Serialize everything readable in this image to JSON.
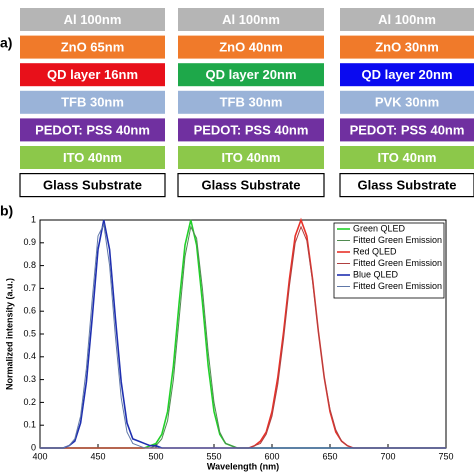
{
  "diagram": {
    "panel_label": "a)",
    "stacks": [
      {
        "layers": [
          {
            "label": "Al 100nm",
            "color": "#b5b5b5"
          },
          {
            "label": "ZnO 65nm",
            "color": "#f07a2a"
          },
          {
            "label": "QD layer 16nm",
            "color": "#e8101a"
          },
          {
            "label": "TFB 30nm",
            "color": "#9ab3d8"
          },
          {
            "label": "PEDOT: PSS 40nm",
            "color": "#7030a0"
          },
          {
            "label": "ITO 40nm",
            "color": "#8cc84a"
          },
          {
            "label": "Glass Substrate",
            "color": "#ffffff"
          }
        ]
      },
      {
        "layers": [
          {
            "label": "Al 100nm",
            "color": "#b5b5b5"
          },
          {
            "label": "ZnO 40nm",
            "color": "#f07a2a"
          },
          {
            "label": "QD layer 20nm",
            "color": "#1ea84a"
          },
          {
            "label": "TFB 30nm",
            "color": "#9ab3d8"
          },
          {
            "label": "PEDOT: PSS 40nm",
            "color": "#7030a0"
          },
          {
            "label": "ITO 40nm",
            "color": "#8cc84a"
          },
          {
            "label": "Glass Substrate",
            "color": "#ffffff"
          }
        ]
      },
      {
        "layers": [
          {
            "label": "Al 100nm",
            "color": "#b5b5b5"
          },
          {
            "label": "ZnO 30nm",
            "color": "#f07a2a"
          },
          {
            "label": "QD layer 20nm",
            "color": "#0a0af0"
          },
          {
            "label": "PVK 30nm",
            "color": "#9ab3d8"
          },
          {
            "label": "PEDOT: PSS 40nm",
            "color": "#7030a0"
          },
          {
            "label": "ITO 40nm",
            "color": "#8cc84a"
          },
          {
            "label": "Glass Substrate",
            "color": "#ffffff"
          }
        ]
      }
    ]
  },
  "chart_data": {
    "type": "line",
    "panel_label": "b)",
    "x_label": "Wavelength (nm)",
    "y_label": "Normalized intensity (a.u.)",
    "xlim": [
      400,
      750
    ],
    "xticks": [
      400,
      450,
      500,
      550,
      600,
      650,
      700,
      750
    ],
    "ylim": [
      0,
      1
    ],
    "yticks": [
      0,
      0.1,
      0.2,
      0.3,
      0.4,
      0.5,
      0.6,
      0.7,
      0.8,
      0.9,
      1
    ],
    "legend": "upper right",
    "x": [
      400,
      405,
      410,
      415,
      420,
      425,
      430,
      435,
      440,
      445,
      450,
      455,
      460,
      465,
      470,
      475,
      480,
      485,
      490,
      495,
      500,
      505,
      510,
      515,
      520,
      525,
      530,
      535,
      540,
      545,
      550,
      555,
      560,
      565,
      570,
      575,
      580,
      585,
      590,
      595,
      600,
      605,
      610,
      615,
      620,
      625,
      630,
      635,
      640,
      645,
      650,
      655,
      660,
      665,
      670,
      675,
      680,
      685,
      690,
      695,
      700,
      705,
      710,
      715,
      720,
      725,
      730,
      735,
      740,
      745,
      750
    ],
    "series": [
      {
        "name": "Green QLED",
        "color": "#22d02a",
        "values": [
          0,
          0,
          0,
          0,
          0,
          0,
          0,
          0,
          0,
          0,
          0,
          0,
          0,
          0,
          0,
          0,
          0,
          0,
          0,
          0.01,
          0.02,
          0.06,
          0.16,
          0.36,
          0.64,
          0.89,
          1,
          0.89,
          0.64,
          0.36,
          0.16,
          0.06,
          0.02,
          0.01,
          0,
          0,
          0,
          0,
          0,
          0,
          0,
          0,
          0,
          0,
          0,
          0,
          0,
          0,
          0,
          0,
          0,
          0,
          0,
          0,
          0,
          0,
          0,
          0,
          0,
          0,
          0,
          0,
          0,
          0,
          0,
          0,
          0,
          0,
          0,
          0,
          0
        ]
      },
      {
        "name": "Fitted Green Emission",
        "color": "#4f8a4f",
        "values": [
          0,
          0,
          0,
          0,
          0,
          0,
          0,
          0,
          0,
          0,
          0,
          0,
          0,
          0,
          0,
          0,
          0,
          0,
          0,
          0,
          0.01,
          0.04,
          0.12,
          0.3,
          0.57,
          0.84,
          0.97,
          0.92,
          0.7,
          0.42,
          0.2,
          0.07,
          0.02,
          0.01,
          0,
          0,
          0,
          0,
          0,
          0,
          0,
          0,
          0,
          0,
          0,
          0,
          0,
          0,
          0,
          0,
          0,
          0,
          0,
          0,
          0,
          0,
          0,
          0,
          0,
          0,
          0,
          0,
          0,
          0,
          0,
          0,
          0,
          0,
          0,
          0,
          0
        ]
      },
      {
        "name": "Red QLED",
        "color": "#e8322a",
        "values": [
          0,
          0,
          0,
          0,
          0,
          0,
          0,
          0,
          0,
          0,
          0,
          0,
          0,
          0,
          0,
          0,
          0,
          0,
          0,
          0,
          0,
          0,
          0,
          0,
          0,
          0,
          0,
          0,
          0,
          0,
          0,
          0,
          0,
          0,
          0,
          0,
          0,
          0.01,
          0.03,
          0.07,
          0.16,
          0.31,
          0.51,
          0.74,
          0.93,
          1,
          0.93,
          0.74,
          0.51,
          0.31,
          0.16,
          0.07,
          0.03,
          0.01,
          0,
          0,
          0,
          0,
          0,
          0,
          0,
          0,
          0,
          0,
          0,
          0,
          0,
          0,
          0,
          0,
          0
        ]
      },
      {
        "name": "Fitted Green Emission",
        "color": "#b04040",
        "values": [
          0,
          0,
          0,
          0,
          0,
          0,
          0,
          0,
          0,
          0,
          0,
          0,
          0,
          0,
          0,
          0,
          0,
          0,
          0,
          0,
          0,
          0,
          0,
          0,
          0,
          0,
          0,
          0,
          0,
          0,
          0,
          0,
          0,
          0,
          0,
          0,
          0,
          0.01,
          0.02,
          0.06,
          0.14,
          0.28,
          0.48,
          0.71,
          0.9,
          0.97,
          0.91,
          0.73,
          0.51,
          0.31,
          0.17,
          0.08,
          0.03,
          0.01,
          0,
          0,
          0,
          0,
          0,
          0,
          0,
          0,
          0,
          0,
          0,
          0,
          0,
          0,
          0,
          0,
          0
        ]
      },
      {
        "name": "Blue QLED",
        "color": "#1f2fb0",
        "values": [
          0,
          0,
          0,
          0,
          0,
          0.01,
          0.03,
          0.11,
          0.29,
          0.57,
          0.87,
          1,
          0.87,
          0.57,
          0.29,
          0.11,
          0.04,
          0.03,
          0.02,
          0.01,
          0.01,
          0,
          0,
          0,
          0,
          0,
          0,
          0,
          0,
          0,
          0,
          0,
          0,
          0,
          0,
          0,
          0,
          0,
          0,
          0,
          0,
          0,
          0,
          0,
          0,
          0,
          0,
          0,
          0,
          0,
          0,
          0,
          0,
          0,
          0,
          0,
          0,
          0,
          0,
          0,
          0,
          0,
          0,
          0,
          0,
          0,
          0,
          0,
          0,
          0,
          0
        ]
      },
      {
        "name": "Fitted Green Emission",
        "color": "#6078a8",
        "values": [
          0,
          0,
          0,
          0,
          0,
          0.01,
          0.04,
          0.14,
          0.35,
          0.65,
          0.93,
          0.98,
          0.8,
          0.49,
          0.22,
          0.07,
          0.02,
          0.01,
          0,
          0,
          0,
          0,
          0,
          0,
          0,
          0,
          0,
          0,
          0,
          0,
          0,
          0,
          0,
          0,
          0,
          0,
          0,
          0,
          0,
          0,
          0,
          0,
          0,
          0,
          0,
          0,
          0,
          0,
          0,
          0,
          0,
          0,
          0,
          0,
          0,
          0,
          0,
          0,
          0,
          0,
          0,
          0,
          0,
          0,
          0,
          0,
          0,
          0,
          0,
          0,
          0
        ]
      }
    ]
  }
}
